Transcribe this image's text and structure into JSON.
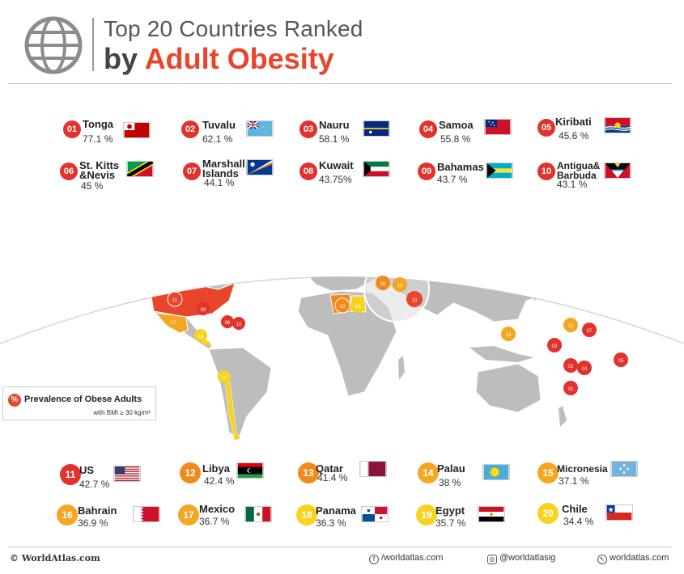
{
  "header": {
    "title_line1": "Top 20 Countries Ranked",
    "title_line2_prefix": "by",
    "title_line2_accent": "Adult Obesity"
  },
  "top_ranks": [
    {
      "rank": "01",
      "name": "Tonga",
      "value": "77.1 %"
    },
    {
      "rank": "02",
      "name": "Tuvalu",
      "value": "62.1 %"
    },
    {
      "rank": "03",
      "name": "Nauru",
      "value": "58.1 %"
    },
    {
      "rank": "04",
      "name": "Samoa",
      "value": "55.8 %"
    },
    {
      "rank": "05",
      "name": "Kiribati",
      "value": "45.6 %"
    },
    {
      "rank": "06",
      "name_line1": "St. Kitts",
      "name_line2": "&Nevis",
      "value": "45 %"
    },
    {
      "rank": "07",
      "name_line1": "Marshall",
      "name_line2": "Islands",
      "value": "44.1 %"
    },
    {
      "rank": "08",
      "name": "Kuwait",
      "value": "43.75%"
    },
    {
      "rank": "09",
      "name": "Bahamas",
      "value": "43.7 %"
    },
    {
      "rank": "10",
      "name_line1": "Antigua&",
      "name_line2": "Barbuda",
      "value": "43.1 %"
    }
  ],
  "bottom_ranks": [
    {
      "rank": "11",
      "name": "US",
      "value": "42.7 %"
    },
    {
      "rank": "12",
      "name": "Libya",
      "value": "42.4 %"
    },
    {
      "rank": "13",
      "name": "Qatar",
      "value": "41.4 %"
    },
    {
      "rank": "14",
      "name": "Palau",
      "value": "38 %"
    },
    {
      "rank": "15",
      "name": "Micronesia",
      "value": "37.1 %"
    },
    {
      "rank": "16",
      "name": "Bahrain",
      "value": "36.9 %"
    },
    {
      "rank": "17",
      "name": "Mexico",
      "value": "36.7 %"
    },
    {
      "rank": "18",
      "name": "Panama",
      "value": "36.3 %"
    },
    {
      "rank": "19",
      "name": "Egypt",
      "value": "35.7 %"
    },
    {
      "rank": "20",
      "name": "Chile",
      "value": "34.4 %"
    }
  ],
  "map_pins": [
    "01",
    "02",
    "03",
    "04",
    "05",
    "06",
    "07",
    "08",
    "09",
    "10",
    "11",
    "12",
    "13",
    "14",
    "15",
    "16",
    "17",
    "18",
    "19",
    "20"
  ],
  "legend": {
    "symbol": "%",
    "title": "Prevalence of Obese Adults",
    "subtitle": "with BMI ≥ 30 kg/m²"
  },
  "footer": {
    "brand": "© WorldAtlas.com",
    "facebook": "/worldatlas.com",
    "instagram": "@worldatlasig",
    "website": "worldatlas.com"
  },
  "colors": {
    "accent": "#e8452b",
    "red": "#e1322c",
    "orange": "#f08a1c",
    "amber": "#f5a623",
    "yellow": "#f7d21e",
    "land": "#bdbdbd"
  }
}
